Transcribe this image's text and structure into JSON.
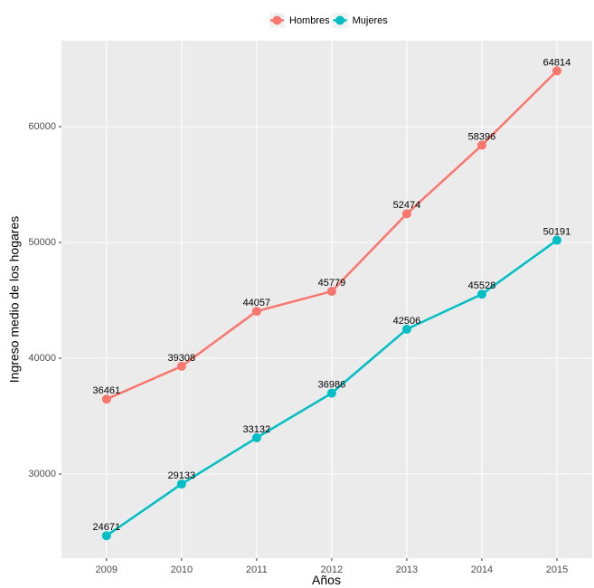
{
  "chart_data": {
    "type": "line",
    "x_label": "Años",
    "y_label": "Ingreso medio de los hogares",
    "x": [
      2009,
      2010,
      2011,
      2012,
      2013,
      2014,
      2015
    ],
    "xlim": [
      2008.4,
      2015.47
    ],
    "xticks": [
      2009,
      2010,
      2011,
      2012,
      2013,
      2014,
      2015
    ],
    "ylim": [
      22734,
      67422
    ],
    "yticks": [
      30000,
      40000,
      50000,
      60000
    ],
    "grid": true,
    "legend": "top",
    "series": [
      {
        "name": "Hombres",
        "color": "#F8766D",
        "values": [
          36461,
          39308,
          44057,
          45779,
          52474,
          58396,
          64814
        ]
      },
      {
        "name": "Mujeres",
        "color": "#00BFC4",
        "values": [
          24671,
          29133,
          33132,
          36986,
          42506,
          45528,
          50191
        ]
      }
    ]
  }
}
